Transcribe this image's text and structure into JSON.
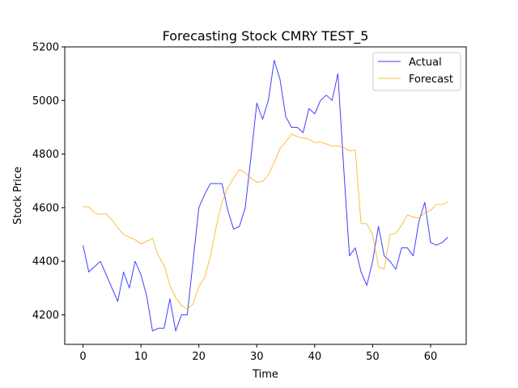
{
  "chart_data": {
    "type": "line",
    "title": "Forecasting Stock CMRY TEST_5",
    "xlabel": "Time",
    "ylabel": "Stock Price",
    "xlim": [
      -3.15,
      66.15
    ],
    "ylim": [
      4090,
      5200
    ],
    "xticks": [
      0,
      10,
      20,
      30,
      40,
      50,
      60
    ],
    "yticks": [
      4200,
      4400,
      4600,
      4800,
      5000,
      5200
    ],
    "grid": false,
    "legend_position": "top-right",
    "series": [
      {
        "name": "Actual",
        "color": "#0000ff",
        "x": [
          0,
          1,
          2,
          3,
          4,
          5,
          6,
          7,
          8,
          9,
          10,
          11,
          12,
          13,
          14,
          15,
          16,
          17,
          18,
          19,
          20,
          21,
          22,
          23,
          24,
          25,
          26,
          27,
          28,
          29,
          30,
          31,
          32,
          33,
          34,
          35,
          36,
          37,
          38,
          39,
          40,
          41,
          42,
          43,
          44,
          45,
          46,
          47,
          48,
          49,
          50,
          51,
          52,
          53,
          54,
          55,
          56,
          57,
          58,
          59,
          60,
          61,
          62,
          63
        ],
        "values": [
          4460,
          4360,
          4380,
          4400,
          4350,
          4300,
          4250,
          4360,
          4300,
          4400,
          4350,
          4270,
          4140,
          4150,
          4150,
          4260,
          4140,
          4200,
          4200,
          4400,
          4600,
          4650,
          4690,
          4690,
          4690,
          4590,
          4520,
          4530,
          4600,
          4790,
          4990,
          4930,
          5000,
          5150,
          5080,
          4940,
          4900,
          4900,
          4880,
          4970,
          4950,
          5000,
          5020,
          5000,
          5100,
          4750,
          4420,
          4450,
          4360,
          4310,
          4400,
          4530,
          4420,
          4400,
          4370,
          4450,
          4450,
          4420,
          4550,
          4620,
          4470,
          4460,
          4470,
          4490
        ]
      },
      {
        "name": "Forecast",
        "color": "#ffa500",
        "x": [
          0,
          1,
          2,
          3,
          4,
          5,
          6,
          7,
          8,
          9,
          10,
          11,
          12,
          13,
          14,
          15,
          16,
          17,
          18,
          19,
          20,
          21,
          22,
          23,
          24,
          25,
          26,
          27,
          28,
          29,
          30,
          31,
          32,
          33,
          34,
          35,
          36,
          37,
          38,
          39,
          40,
          41,
          42,
          43,
          44,
          45,
          46,
          47,
          48,
          49,
          50,
          51,
          52,
          53,
          54,
          55,
          56,
          57,
          58,
          59,
          60,
          61,
          62,
          63
        ],
        "values": [
          4603,
          4603,
          4580,
          4575,
          4577,
          4555,
          4525,
          4500,
          4490,
          4480,
          4465,
          4475,
          4485,
          4420,
          4385,
          4310,
          4265,
          4235,
          4222,
          4240,
          4305,
          4340,
          4420,
          4530,
          4620,
          4675,
          4710,
          4743,
          4730,
          4710,
          4695,
          4698,
          4722,
          4768,
          4820,
          4845,
          4875,
          4865,
          4860,
          4855,
          4843,
          4845,
          4838,
          4830,
          4830,
          4825,
          4812,
          4815,
          4540,
          4540,
          4500,
          4380,
          4370,
          4500,
          4505,
          4535,
          4573,
          4565,
          4562,
          4580,
          4590,
          4612,
          4612,
          4622
        ]
      }
    ]
  }
}
